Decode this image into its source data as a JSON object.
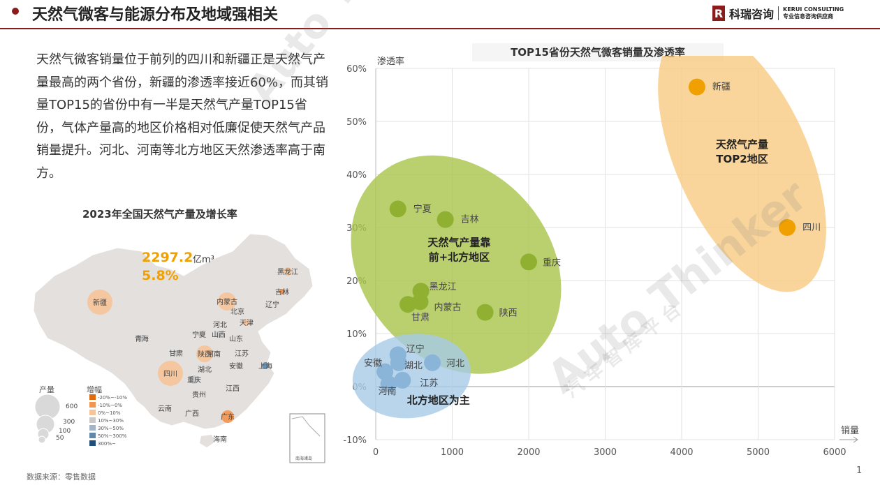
{
  "header": {
    "title": "天然气微客与能源分布及地域强相关",
    "logo_mark": "R",
    "logo_cn": "科瑞咨询",
    "logo_en_1": "KERUI CONSULTING",
    "logo_en_2": "专业信息咨询供应商"
  },
  "paragraph": "天然气微客销量位于前列的四川和新疆正是天然气产量最高的两个省份，新疆的渗透率接近60%，而其销量TOP15的省份中有一半是天然气产量TOP15省份，气体产量高的地区价格相对低廉促使天然气产品销量提升。河北、河南等北方地区天然渗透率高于南方。",
  "map": {
    "title": "2023年全国天然气产量及增长率",
    "total_value": "2297.2",
    "total_unit": "亿m³",
    "growth": "5.8%",
    "legend_size_title": "产量",
    "legend_sizes": [
      "600",
      "300",
      "100",
      "50"
    ],
    "legend_growth_title": "增幅",
    "legend_growth": [
      {
        "label": "-20%~-10%",
        "color": "#e06a10"
      },
      {
        "label": "-10%~0%",
        "color": "#f29550"
      },
      {
        "label": "0%~10%",
        "color": "#f5c49a"
      },
      {
        "label": "10%~30%",
        "color": "#c9c9c9"
      },
      {
        "label": "30%~50%",
        "color": "#a4b4c4"
      },
      {
        "label": "50%~300%",
        "color": "#5f88aa"
      },
      {
        "label": "300%~",
        "color": "#1f4e79"
      }
    ],
    "provinces": [
      "新疆",
      "青海",
      "甘肃",
      "宁夏",
      "陕西",
      "山西",
      "内蒙古",
      "黑龙江",
      "吉林",
      "辽宁",
      "北京",
      "天津",
      "河北",
      "山东",
      "河南",
      "江苏",
      "安徽",
      "湖北",
      "四川",
      "重庆",
      "贵州",
      "云南",
      "广西",
      "广东",
      "江西",
      "上海",
      "海南"
    ],
    "inset_label": "南海诸岛",
    "source": "数据来源：零售数据"
  },
  "chart_data": {
    "type": "scatter",
    "title": "TOP15省份天然气微客销量及渗透率",
    "xlabel": "销量",
    "ylabel": "渗透率",
    "xlim": [
      0,
      6000
    ],
    "ylim": [
      -0.1,
      0.6
    ],
    "x_ticks": [
      "0",
      "1000",
      "2000",
      "3000",
      "4000",
      "5000",
      "6000"
    ],
    "y_ticks": [
      "-10%",
      "0%",
      "10%",
      "20%",
      "30%",
      "40%",
      "50%",
      "60%"
    ],
    "grid": true,
    "points": [
      {
        "name": "新疆",
        "x": 4200,
        "y": 0.565,
        "color": "#f0a000"
      },
      {
        "name": "四川",
        "x": 5380,
        "y": 0.3,
        "color": "#f0a000"
      },
      {
        "name": "宁夏",
        "x": 290,
        "y": 0.335,
        "color": "#8fb030"
      },
      {
        "name": "吉林",
        "x": 910,
        "y": 0.315,
        "color": "#8fb030"
      },
      {
        "name": "重庆",
        "x": 2000,
        "y": 0.235,
        "color": "#8fb030"
      },
      {
        "name": "黑龙江",
        "x": 590,
        "y": 0.18,
        "color": "#8fb030"
      },
      {
        "name": "内蒙古",
        "x": 580,
        "y": 0.16,
        "color": "#8fb030"
      },
      {
        "name": "甘肃",
        "x": 420,
        "y": 0.155,
        "color": "#8fb030"
      },
      {
        "name": "陕西",
        "x": 1430,
        "y": 0.14,
        "color": "#8fb030"
      },
      {
        "name": "辽宁",
        "x": 290,
        "y": 0.06,
        "color": "#8ab4d8"
      },
      {
        "name": "湖北",
        "x": 300,
        "y": 0.045,
        "color": "#8ab4d8"
      },
      {
        "name": "河北",
        "x": 740,
        "y": 0.045,
        "color": "#8ab4d8"
      },
      {
        "name": "安徽",
        "x": 120,
        "y": 0.028,
        "color": "#8ab4d8"
      },
      {
        "name": "江苏",
        "x": 350,
        "y": 0.012,
        "color": "#8ab4d8"
      },
      {
        "name": "河南",
        "x": 170,
        "y": 0.005,
        "color": "#8ab4d8"
      }
    ],
    "annotations": [
      {
        "text_1": "天然气产量",
        "text_2": "TOP2地区",
        "color": "#f7c77a"
      },
      {
        "text_1": "天然气产量靠",
        "text_2": "前+北方地区",
        "color": "#a9c44a"
      },
      {
        "text_1": "北方地区为主",
        "text_2": "",
        "color": "#a7cbe6"
      }
    ]
  },
  "watermark": {
    "text": "Auto Thinker",
    "sub": "汽 车 智 库 平 台"
  },
  "page_number": "1"
}
